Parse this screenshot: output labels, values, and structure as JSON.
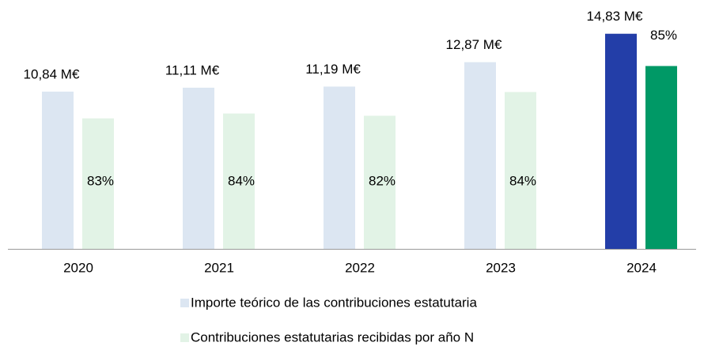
{
  "chart_data": {
    "type": "bar",
    "categories": [
      "2020",
      "2021",
      "2022",
      "2023",
      "2024"
    ],
    "series": [
      {
        "name": "Importe teórico de las contribuciones estatutaria",
        "color": "#dce6f2",
        "colors": [
          "#dce6f2",
          "#dce6f2",
          "#dce6f2",
          "#dce6f2",
          "#233ea8"
        ],
        "values": [
          10.84,
          11.11,
          11.19,
          12.87,
          14.83
        ],
        "value_labels": [
          "10,84 M€",
          "11,11 M€",
          "11,19 M€",
          "12,87 M€",
          "14,83 M€"
        ]
      },
      {
        "name": "Contribuciones estatutarias recibidas por año N",
        "color": "#e2f3e6",
        "colors": [
          "#e2f3e6",
          "#e2f3e6",
          "#e2f3e6",
          "#e2f3e6",
          "#009966"
        ],
        "values": [
          83,
          84,
          82,
          84,
          85
        ],
        "value_labels": [
          "83%",
          "84%",
          "82%",
          "84%",
          "85%"
        ]
      }
    ]
  }
}
